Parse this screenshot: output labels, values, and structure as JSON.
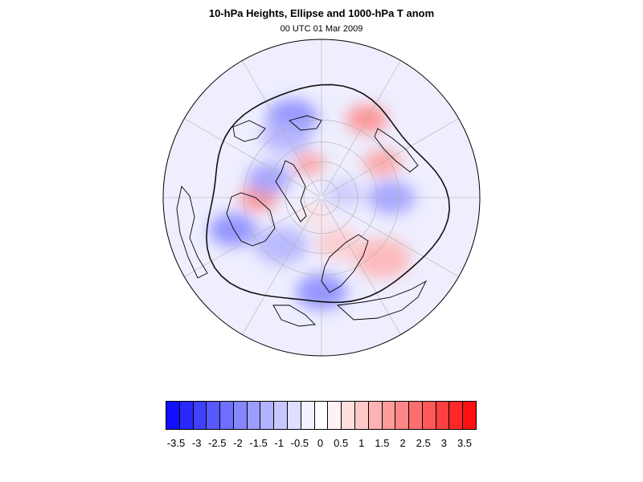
{
  "figure": {
    "title": "10-hPa Heights, Ellipse and 1000-hPa T anom",
    "subtitle": "00 UTC 01 Mar 2009"
  },
  "colorbar": {
    "colors": [
      "#1010ff",
      "#2828ff",
      "#4040ff",
      "#5858ff",
      "#6e6eff",
      "#8686ff",
      "#9c9cff",
      "#b2b2ff",
      "#c8c8ff",
      "#dedeff",
      "#f2f2ff",
      "#ffffff",
      "#fff2f2",
      "#ffdede",
      "#ffc8c8",
      "#ffb2b2",
      "#ff9c9c",
      "#ff8686",
      "#ff6e6e",
      "#ff5858",
      "#ff4040",
      "#ff2828",
      "#ff1010"
    ],
    "tick_labels": [
      "-3.5",
      "-3",
      "-2.5",
      "-2",
      "-1.5",
      "-1",
      "-0.5",
      "0",
      "0.5",
      "1",
      "1.5",
      "2",
      "2.5",
      "3",
      "3.5"
    ]
  },
  "map": {
    "projection": "north polar stereographic",
    "anomaly_blobs": [
      {
        "value": -2.0,
        "lon": 200,
        "lat": 25,
        "r": 0.16
      },
      {
        "value": 2.2,
        "lon": 150,
        "lat": 22,
        "r": 0.13
      },
      {
        "value": 1.6,
        "lon": 120,
        "lat": 35,
        "r": 0.12
      },
      {
        "value": -1.8,
        "lon": 90,
        "lat": 35,
        "r": 0.15
      },
      {
        "value": 1.4,
        "lon": 45,
        "lat": 25,
        "r": 0.18
      },
      {
        "value": 1.0,
        "lon": 20,
        "lat": 50,
        "r": 0.14
      },
      {
        "value": -2.0,
        "lon": 0,
        "lat": 20,
        "r": 0.16
      },
      {
        "value": -1.5,
        "lon": -40,
        "lat": 40,
        "r": 0.17
      },
      {
        "value": -2.2,
        "lon": -70,
        "lat": 20,
        "r": 0.15
      },
      {
        "value": 2.2,
        "lon": -90,
        "lat": 40,
        "r": 0.12
      },
      {
        "value": -1.6,
        "lon": -110,
        "lat": 45,
        "r": 0.14
      },
      {
        "value": -1.2,
        "lon": -150,
        "lat": 35,
        "r": 0.16
      },
      {
        "value": 1.8,
        "lon": -160,
        "lat": 60,
        "r": 0.1
      },
      {
        "value": -1.0,
        "lon": 100,
        "lat": 70,
        "r": 0.12
      },
      {
        "value": 0.8,
        "lon": -20,
        "lat": 75,
        "r": 0.1
      }
    ]
  }
}
